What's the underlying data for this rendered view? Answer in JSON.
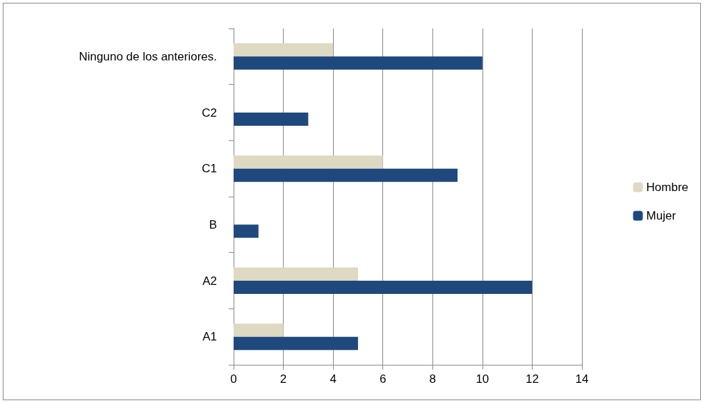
{
  "chart_data": {
    "type": "bar",
    "orientation": "horizontal",
    "categories": [
      "Ninguno de los anteriores.",
      "C2",
      "C1",
      "B",
      "A2",
      "A1"
    ],
    "series": [
      {
        "name": "Hombre",
        "color": "#ddd9c3",
        "values": [
          4,
          0,
          6,
          0,
          5,
          2
        ]
      },
      {
        "name": "Mujer",
        "color": "#1f497d",
        "values": [
          10,
          3,
          9,
          1,
          12,
          5
        ]
      }
    ],
    "xlim": [
      0,
      14
    ],
    "xticks": [
      0,
      2,
      4,
      6,
      8,
      10,
      12,
      14
    ],
    "grid": "x",
    "legend": "right"
  }
}
